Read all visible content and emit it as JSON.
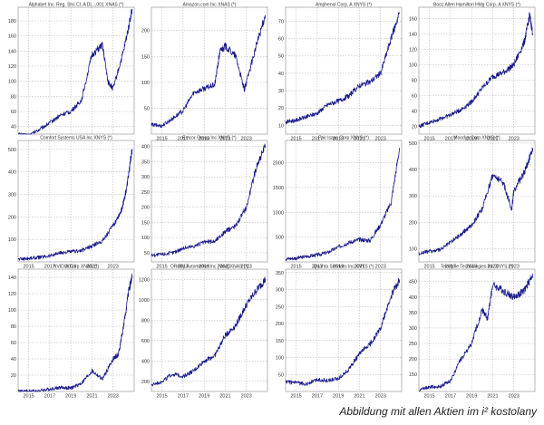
{
  "caption": "Abbildung mit allen Aktien im i² kostolany",
  "colors": {
    "line": "#1a1a8c",
    "grid": "#9a9a9a",
    "frame": "#888888",
    "background": "#ffffff"
  },
  "chart_data": [
    {
      "type": "line",
      "title": "Alphabet Inc. Reg. Shs Cl. A DL -,001 XNAS (*)",
      "yticks": [
        40,
        60,
        80,
        100,
        120,
        140,
        160,
        180
      ],
      "ylim": [
        30,
        198
      ],
      "xticks": [
        "2015",
        "2017",
        "2019",
        "2021",
        "2023"
      ],
      "xticks_shown": false,
      "x": [
        2014,
        2015,
        2016,
        2017,
        2018,
        2019,
        2020,
        2021,
        2022,
        2022.5,
        2023,
        2024,
        2024.8
      ],
      "y": [
        30,
        28,
        36,
        45,
        55,
        60,
        75,
        135,
        148,
        100,
        90,
        140,
        195
      ]
    },
    {
      "type": "line",
      "title": "Amazon.com Inc XNAS (*)",
      "yticks": [
        50,
        100,
        150,
        200
      ],
      "ylim": [
        0,
        245
      ],
      "xticks": [
        "2015",
        "2017",
        "2019",
        "2021",
        "2023"
      ],
      "xticks_shown": true,
      "x": [
        2014,
        2015,
        2016,
        2017,
        2018,
        2019,
        2020,
        2020.5,
        2021,
        2022,
        2022.8,
        2023,
        2024,
        2024.8
      ],
      "y": [
        18,
        16,
        30,
        45,
        80,
        88,
        95,
        160,
        170,
        150,
        85,
        100,
        175,
        230
      ]
    },
    {
      "type": "line",
      "title": "Amphenol Corp. A XNYS (*)",
      "yticks": [
        10,
        20,
        30,
        40,
        50,
        60,
        70
      ],
      "ylim": [
        5,
        78
      ],
      "xticks": [
        "2015",
        "2017",
        "2019",
        "2021",
        "2023"
      ],
      "xticks_shown": true,
      "x": [
        2014,
        2015,
        2016,
        2017,
        2018,
        2019,
        2020,
        2021,
        2022,
        2023,
        2024,
        2024.8
      ],
      "y": [
        12,
        13,
        15,
        17,
        22,
        24,
        27,
        33,
        35,
        40,
        60,
        75
      ]
    },
    {
      "type": "line",
      "title": "Booz Allen Hamilton Hldg Corp. A XNYS (*)",
      "yticks": [
        20,
        40,
        60,
        80,
        100,
        120,
        140,
        160
      ],
      "ylim": [
        10,
        175
      ],
      "xticks": [
        "2015",
        "2017",
        "2019",
        "2021",
        "2023"
      ],
      "xticks_shown": true,
      "x": [
        2014,
        2015,
        2016,
        2017,
        2018,
        2019,
        2020,
        2021,
        2022,
        2023,
        2024,
        2024.5,
        2024.8
      ],
      "y": [
        20,
        25,
        30,
        35,
        42,
        52,
        70,
        85,
        90,
        100,
        130,
        165,
        140
      ]
    },
    {
      "type": "line",
      "title": "Comfort Systems USA Inc XNYS (*)",
      "yticks": [
        100,
        200,
        300,
        400,
        500
      ],
      "ylim": [
        0,
        540
      ],
      "xticks": [
        "2015",
        "2017",
        "2019",
        "2021",
        "2023"
      ],
      "xticks_shown": true,
      "x": [
        2014,
        2015,
        2016,
        2017,
        2018,
        2019,
        2020,
        2021,
        2022,
        2023,
        2023.8,
        2024.3,
        2024.8
      ],
      "y": [
        12,
        16,
        20,
        28,
        40,
        45,
        50,
        70,
        95,
        160,
        230,
        330,
        500
      ]
    },
    {
      "type": "line",
      "title": "Emcor Group Inc XNYS (*)",
      "yticks": [
        50,
        100,
        150,
        200,
        250,
        300,
        350,
        400
      ],
      "ylim": [
        20,
        420
      ],
      "xticks": [
        "2015",
        "2017",
        "2019",
        "2021",
        "2023"
      ],
      "xticks_shown": true,
      "x": [
        2014,
        2015,
        2016,
        2017,
        2018,
        2019,
        2020,
        2021,
        2022,
        2023,
        2024,
        2024.8
      ],
      "y": [
        42,
        45,
        50,
        65,
        72,
        85,
        88,
        120,
        140,
        200,
        340,
        400
      ]
    },
    {
      "type": "line",
      "title": "Fair Isaac Corp XNYS (*)",
      "yticks": [
        500,
        1000,
        1500,
        2000
      ],
      "ylim": [
        0,
        2450
      ],
      "xticks": [
        "2015",
        "2017",
        "2019",
        "2021",
        "2023"
      ],
      "xticks_shown": true,
      "x": [
        2014,
        2015,
        2016,
        2017,
        2018,
        2019,
        2020,
        2021,
        2022,
        2023,
        2024,
        2024.8
      ],
      "y": [
        60,
        75,
        110,
        140,
        190,
        300,
        390,
        450,
        430,
        750,
        1200,
        2300
      ]
    },
    {
      "type": "line",
      "title": "Moodys Corp XNYS (*)",
      "yticks": [
        100,
        200,
        300,
        400,
        500
      ],
      "ylim": [
        50,
        510
      ],
      "xticks": [
        "2015",
        "2017",
        "2019",
        "2021",
        "2023"
      ],
      "xticks_shown": true,
      "x": [
        2014,
        2015,
        2016,
        2017,
        2018,
        2019,
        2020,
        2021,
        2022,
        2022.8,
        2023,
        2024,
        2024.8
      ],
      "y": [
        82,
        90,
        95,
        125,
        155,
        190,
        250,
        380,
        350,
        250,
        320,
        390,
        480
      ]
    },
    {
      "type": "line",
      "title": "NVIDIA Corp XNAS (*)",
      "yticks": [
        20,
        40,
        60,
        80,
        100,
        120,
        140
      ],
      "ylim": [
        0,
        150
      ],
      "xticks": [
        "2015",
        "2017",
        "2019",
        "2021",
        "2023"
      ],
      "xticks_shown": true,
      "x": [
        2014,
        2015,
        2016,
        2017,
        2018,
        2019,
        2020,
        2021,
        2022,
        2023,
        2023.5,
        2024,
        2024.5,
        2024.8
      ],
      "y": [
        0.5,
        0.5,
        1,
        3,
        5,
        4,
        10,
        25,
        15,
        40,
        45,
        80,
        125,
        140
      ]
    },
    {
      "type": "line",
      "title": "OReilly Automotive Inc [New] XNAS (*)",
      "yticks": [
        200,
        400,
        600,
        800,
        1000,
        1200
      ],
      "ylim": [
        100,
        1300
      ],
      "xticks": [
        "2015",
        "2017",
        "2019",
        "2021",
        "2023"
      ],
      "xticks_shown": true,
      "x": [
        2014,
        2015,
        2016,
        2017,
        2018,
        2019,
        2020,
        2021,
        2022,
        2023,
        2024,
        2024.8
      ],
      "y": [
        160,
        200,
        270,
        250,
        300,
        400,
        450,
        650,
        750,
        950,
        1100,
        1200
      ]
    },
    {
      "type": "line",
      "title": "Quanta Services Inc XNYS (*)",
      "yticks": [
        50,
        100,
        150,
        200,
        250,
        300,
        350
      ],
      "ylim": [
        0,
        360
      ],
      "xticks": [
        "2015",
        "2017",
        "2019",
        "2021",
        "2023"
      ],
      "xticks_shown": true,
      "x": [
        2014,
        2015,
        2016,
        2017,
        2018,
        2019,
        2020,
        2021,
        2022,
        2023,
        2024,
        2024.8
      ],
      "y": [
        28,
        25,
        22,
        35,
        32,
        38,
        65,
        110,
        140,
        185,
        280,
        330
      ]
    },
    {
      "type": "line",
      "title": "Teledyne Technologies Inc XNYS (*)",
      "yticks": [
        150,
        200,
        250,
        300,
        350,
        400,
        450
      ],
      "ylim": [
        95,
        490
      ],
      "xticks": [
        "2015",
        "2017",
        "2019",
        "2021",
        "2023"
      ],
      "xticks_shown": true,
      "x": [
        2014,
        2015,
        2016,
        2017,
        2018,
        2019,
        2020,
        2020.5,
        2021,
        2022,
        2023,
        2024,
        2024.8
      ],
      "y": [
        100,
        110,
        110,
        130,
        200,
        250,
        360,
        330,
        440,
        420,
        400,
        420,
        475
      ]
    }
  ]
}
